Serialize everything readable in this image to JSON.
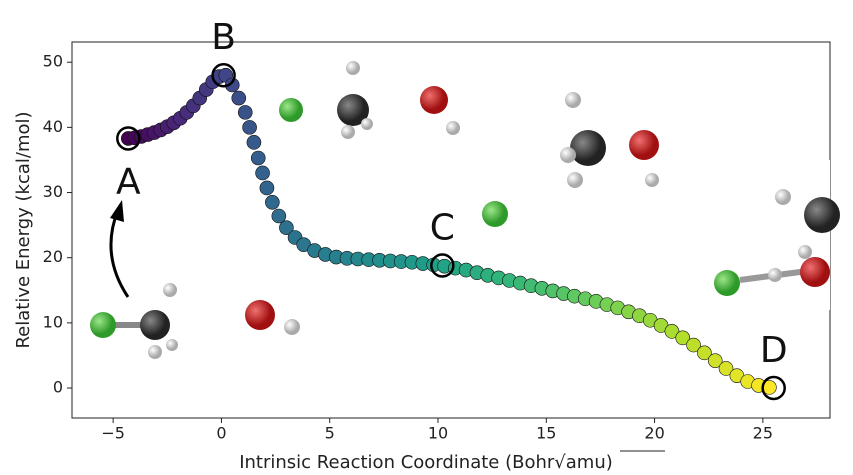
{
  "chart_data": {
    "type": "scatter",
    "x_label": "Intrinsic Reaction Coordinate (Bohr√amu)",
    "y_label": "Relative Energy (kcal/mol)",
    "x": [
      -4.3,
      -4.0,
      -3.7,
      -3.4,
      -3.1,
      -2.8,
      -2.5,
      -2.2,
      -1.9,
      -1.6,
      -1.3,
      -1.0,
      -0.7,
      -0.4,
      -0.1,
      0.2,
      0.5,
      0.8,
      1.1,
      1.3,
      1.5,
      1.7,
      1.9,
      2.1,
      2.35,
      2.65,
      3.0,
      3.4,
      3.8,
      4.3,
      4.8,
      5.3,
      5.8,
      6.3,
      6.8,
      7.3,
      7.8,
      8.3,
      8.8,
      9.3,
      9.8,
      10.3,
      10.8,
      11.3,
      11.8,
      12.3,
      12.8,
      13.3,
      13.8,
      14.3,
      14.8,
      15.3,
      15.8,
      16.3,
      16.8,
      17.3,
      17.8,
      18.3,
      18.8,
      19.3,
      19.8,
      20.3,
      20.8,
      21.3,
      21.8,
      22.3,
      22.8,
      23.3,
      23.8,
      24.3,
      24.8,
      25.3
    ],
    "values": [
      38.3,
      38.4,
      38.6,
      38.9,
      39.2,
      39.6,
      40.1,
      40.7,
      41.4,
      42.3,
      43.3,
      44.5,
      45.8,
      47.0,
      47.8,
      48.0,
      46.5,
      44.5,
      42.3,
      40.0,
      37.7,
      35.3,
      33.0,
      30.7,
      28.5,
      26.4,
      24.6,
      23.1,
      22.0,
      21.1,
      20.5,
      20.1,
      19.9,
      19.8,
      19.7,
      19.6,
      19.5,
      19.4,
      19.3,
      19.1,
      18.9,
      18.7,
      18.4,
      18.1,
      17.7,
      17.3,
      16.9,
      16.5,
      16.1,
      15.7,
      15.3,
      14.9,
      14.5,
      14.1,
      13.7,
      13.3,
      12.8,
      12.3,
      11.7,
      11.1,
      10.4,
      9.6,
      8.7,
      7.7,
      6.6,
      5.4,
      4.2,
      3.0,
      1.9,
      1.0,
      0.4,
      0.1
    ],
    "colormap": "viridis",
    "xlim": [
      -6.9,
      28.1
    ],
    "ylim": [
      -4.6,
      53.1
    ],
    "xticks": [
      {
        "value": -5,
        "label": "−5"
      },
      0,
      5,
      10,
      15,
      20,
      25
    ],
    "yticks": [
      0,
      10,
      20,
      30,
      40,
      50
    ],
    "annotations": [
      {
        "text": "A",
        "x": -4.3,
        "y": 38.3,
        "position": "below"
      },
      {
        "text": "B",
        "x": 0.1,
        "y": 48.0,
        "position": "above"
      },
      {
        "text": "C",
        "x": 10.2,
        "y": 18.8,
        "position": "above"
      },
      {
        "text": "D",
        "x": 25.5,
        "y": 0.0,
        "position": "above"
      }
    ]
  }
}
